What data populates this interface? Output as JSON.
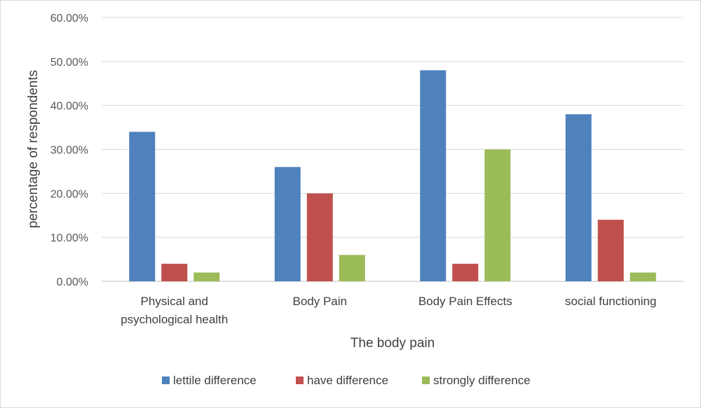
{
  "chart_data": {
    "type": "bar",
    "title": "",
    "xlabel": "The body pain",
    "ylabel": "percentage of respondents",
    "ylim": [
      0,
      0.6
    ],
    "yticks": [
      "0.00%",
      "10.00%",
      "20.00%",
      "30.00%",
      "40.00%",
      "50.00%",
      "60.00%"
    ],
    "categories": [
      [
        "Physical and",
        "psychological health"
      ],
      [
        "Body Pain"
      ],
      [
        "Body Pain Effects"
      ],
      [
        "social functioning"
      ]
    ],
    "series": [
      {
        "name": "lettile difference",
        "color": "#4f81bd",
        "values": [
          0.34,
          0.26,
          0.48,
          0.38
        ]
      },
      {
        "name": "have difference",
        "color": "#c0504d",
        "values": [
          0.04,
          0.2,
          0.04,
          0.14
        ]
      },
      {
        "name": "strongly difference",
        "color": "#9bbb59",
        "values": [
          0.02,
          0.06,
          0.3,
          0.02
        ]
      }
    ],
    "grid": true,
    "legend_position": "bottom"
  }
}
